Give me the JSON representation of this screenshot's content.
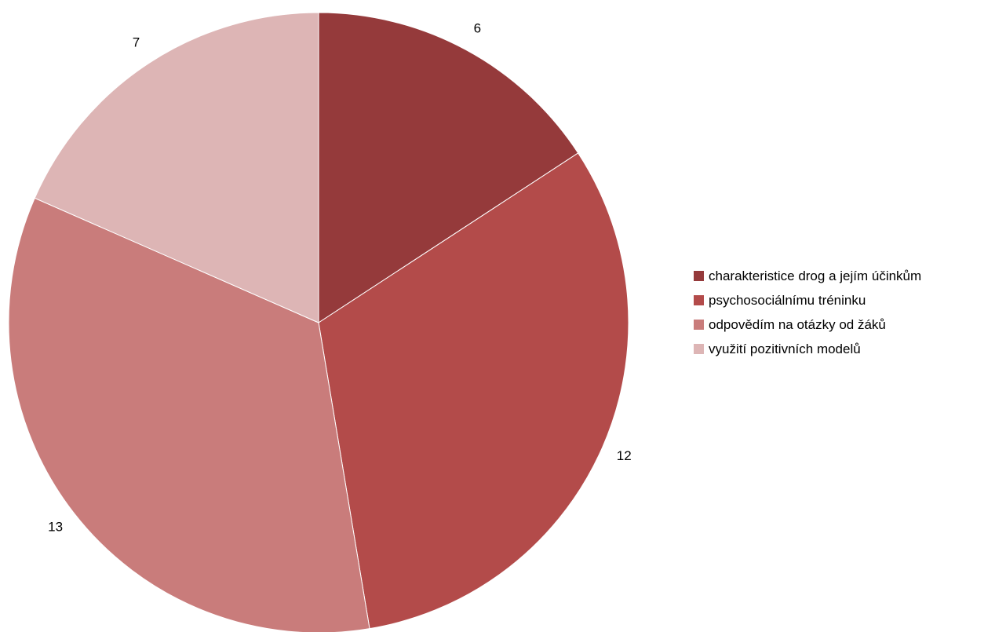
{
  "chart_data": {
    "type": "pie",
    "categories": [
      "charakteristice drog a jejím účinkům",
      "psychosociálnímu tréninku",
      "odpovědím na otázky od žáků",
      "využití pozitivních modelů"
    ],
    "values": [
      6,
      12,
      13,
      7
    ],
    "data_labels": [
      "6",
      "12",
      "13",
      "7"
    ],
    "colors": [
      "#953a3b",
      "#b34b4a",
      "#c97c7b",
      "#ddb5b5"
    ],
    "start_angle": "12 o'clock",
    "direction": "clockwise",
    "legend_position": "right"
  }
}
